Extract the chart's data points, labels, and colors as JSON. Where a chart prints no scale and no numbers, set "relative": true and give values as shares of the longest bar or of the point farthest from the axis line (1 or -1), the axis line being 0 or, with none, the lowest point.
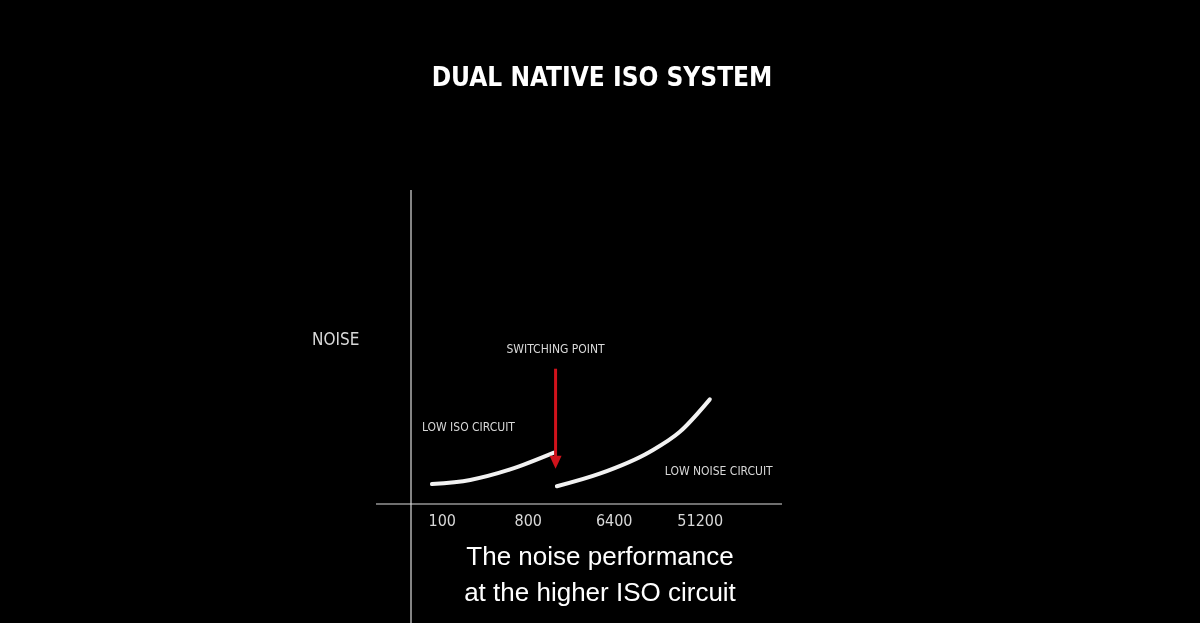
{
  "chart_data": {
    "type": "line",
    "title": "DUAL NATIVE ISO SYSTEM",
    "ylabel": "NOISE",
    "relative": true,
    "log": "x",
    "xlim": [
      47,
      370000
    ],
    "xticks": [
      100,
      800,
      6400,
      51200
    ],
    "marker": "none",
    "line_style": "solid",
    "series": [
      {
        "name": "LOW ISO CIRCUIT",
        "color": "#f2f2f2",
        "x": [
          78,
          197,
          517,
          1490
        ],
        "values": [
          0.19,
          0.23,
          0.33,
          0.49
        ]
      },
      {
        "name": "LOW NOISE CIRCUIT",
        "color": "#f2f2f2",
        "x": [
          1600,
          4500,
          15200,
          31300,
          64600
        ],
        "values": [
          0.17,
          0.29,
          0.5,
          0.69,
          1
        ]
      }
    ],
    "annotations": [
      {
        "text": "SWITCHING POINT",
        "x": 1550,
        "y": 0.49
      },
      "The noise performance at the higher ISO circuit"
    ]
  }
}
